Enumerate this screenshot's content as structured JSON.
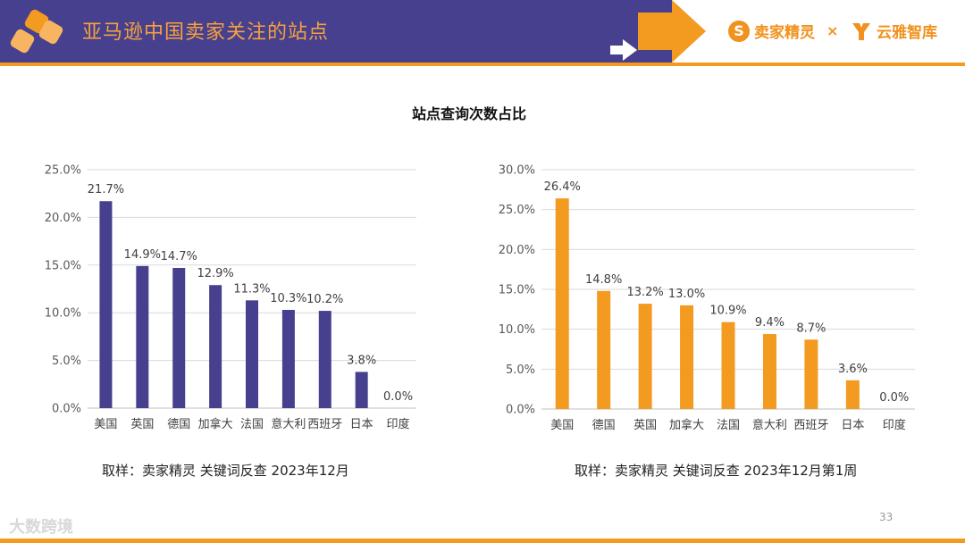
{
  "header": {
    "title": "亚马逊中国卖家关注的站点",
    "brand1": "卖家精灵",
    "brand_separator": "×",
    "brand2": "云雅智库"
  },
  "chart_title": "站点查询次数占比",
  "chart_data": [
    {
      "type": "bar",
      "categories": [
        "美国",
        "英国",
        "德国",
        "加拿大",
        "法国",
        "意大利",
        "西班牙",
        "日本",
        "印度"
      ],
      "values": [
        21.7,
        14.9,
        14.7,
        12.9,
        11.3,
        10.3,
        10.2,
        3.8,
        0.0
      ],
      "data_labels": [
        "21.7%",
        "14.9%",
        "14.7%",
        "12.9%",
        "11.3%",
        "10.3%",
        "10.2%",
        "3.8%",
        "0.0%"
      ],
      "ylim": [
        0,
        25
      ],
      "yticks": [
        "0.0%",
        "5.0%",
        "10.0%",
        "15.0%",
        "20.0%",
        "25.0%"
      ],
      "color": "#46408e",
      "grid": true
    },
    {
      "type": "bar",
      "categories": [
        "美国",
        "德国",
        "英国",
        "加拿大",
        "法国",
        "意大利",
        "西班牙",
        "日本",
        "印度"
      ],
      "values": [
        26.4,
        14.8,
        13.2,
        13.0,
        10.9,
        9.4,
        8.7,
        3.6,
        0.0
      ],
      "data_labels": [
        "26.4%",
        "14.8%",
        "13.2%",
        "13.0%",
        "10.9%",
        "9.4%",
        "8.7%",
        "3.6%",
        "0.0%"
      ],
      "ylim": [
        0,
        30
      ],
      "yticks": [
        "0.0%",
        "5.0%",
        "10.0%",
        "15.0%",
        "20.0%",
        "25.0%",
        "30.0%"
      ],
      "color": "#f39a21",
      "grid": true
    }
  ],
  "notes": {
    "left": "取样：卖家精灵 关键词反查 2023年12月",
    "right": "取样：卖家精灵 关键词反查 2023年12月第1周"
  },
  "page_number": "33",
  "watermark": "大数跨境"
}
